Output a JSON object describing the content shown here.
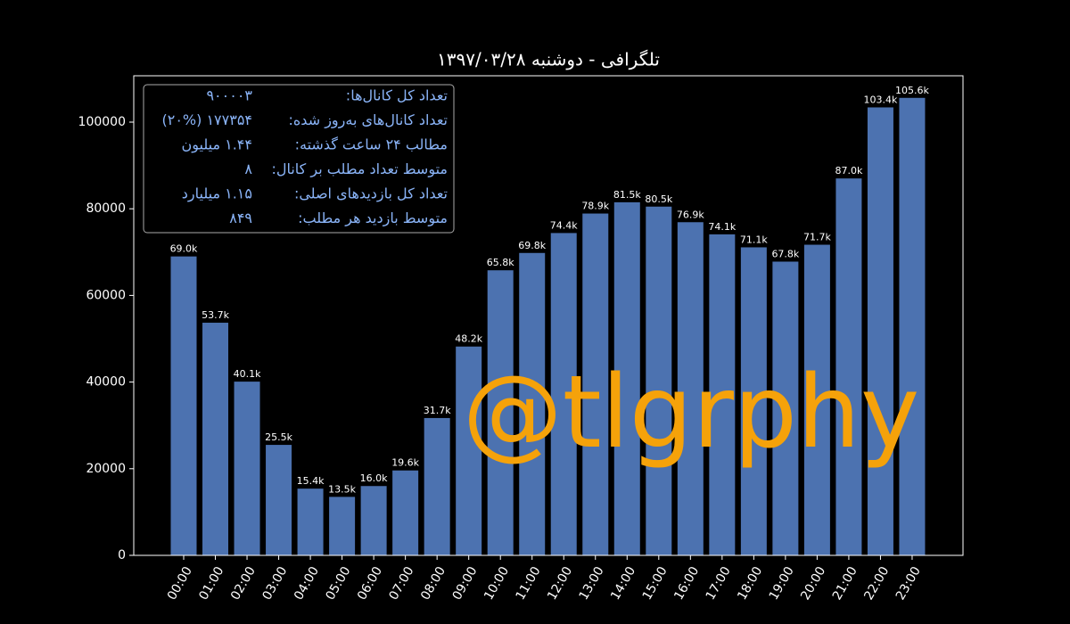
{
  "chart_data": {
    "type": "bar",
    "title": "تلگرافی - دوشنبه ۱۳۹۷/۰۳/۲۸",
    "categories": [
      "00:00",
      "01:00",
      "02:00",
      "03:00",
      "04:00",
      "05:00",
      "06:00",
      "07:00",
      "08:00",
      "09:00",
      "10:00",
      "11:00",
      "12:00",
      "13:00",
      "14:00",
      "15:00",
      "16:00",
      "17:00",
      "18:00",
      "19:00",
      "20:00",
      "21:00",
      "22:00",
      "23:00"
    ],
    "values": [
      69000,
      53700,
      40100,
      25500,
      15400,
      13500,
      16000,
      19600,
      31700,
      48200,
      65800,
      69800,
      74400,
      78900,
      81500,
      80500,
      76900,
      74100,
      71100,
      67800,
      71700,
      87000,
      103400,
      105600
    ],
    "value_labels": [
      "69.0k",
      "53.7k",
      "40.1k",
      "25.5k",
      "15.4k",
      "13.5k",
      "16.0k",
      "19.6k",
      "31.7k",
      "48.2k",
      "65.8k",
      "69.8k",
      "74.4k",
      "78.9k",
      "81.5k",
      "80.5k",
      "76.9k",
      "74.1k",
      "71.1k",
      "67.8k",
      "71.7k",
      "87.0k",
      "103.4k",
      "105.6k"
    ],
    "color": "#4c72b0",
    "ylim": [
      0,
      110700
    ],
    "yticks": [
      0,
      20000,
      40000,
      60000,
      80000,
      100000
    ],
    "stats": [
      {
        "label": "تعداد کل کانال‌ها:",
        "value": "۹۰۰۰۰۳"
      },
      {
        "label": "تعداد کانال‌های به‌روز شده:",
        "value": "۱۷۷۳۵۴ (۲۰%)"
      },
      {
        "label": "مطالب ۲۴ ساعت گذشته:",
        "value": "۱.۴۴ میلیون"
      },
      {
        "label": "متوسط تعداد مطلب بر کانال:",
        "value": "۸"
      },
      {
        "label": "تعداد کل بازدیدهای اصلی:",
        "value": "۱.۱۵ میلیارد"
      },
      {
        "label": "متوسط بازدید هر مطلب:",
        "value": "۸۴۹"
      }
    ],
    "annotation": "@tlgrphy"
  }
}
